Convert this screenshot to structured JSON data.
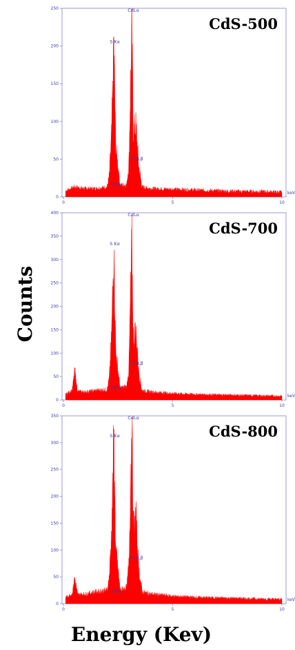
{
  "figure": {
    "ylabel": "Counts",
    "xlabel": "Energy (Kev)"
  },
  "chart_data": [
    {
      "type": "area",
      "title": "CdS-500",
      "x_unit": "keV",
      "xlim": [
        0,
        10
      ],
      "ylim": [
        0,
        250
      ],
      "xticks": [
        "0",
        "5",
        "10"
      ],
      "yticks": [
        "0",
        "50",
        "100",
        "150",
        "200",
        "250"
      ],
      "background_counts": 10,
      "peaks": [
        {
          "label": "S Kα",
          "x": 2.31,
          "y": 200
        },
        {
          "label": "CdLα",
          "x": 3.13,
          "y": 227
        },
        {
          "label": "CdLβ",
          "x": 3.32,
          "y": 93
        },
        {
          "label": "CdLγ",
          "x": 2.35,
          "y": 10
        }
      ],
      "series": [
        {
          "x": [
            0.1,
            0.5,
            1.0,
            1.5,
            2.0,
            2.1,
            2.2,
            2.31,
            2.4,
            2.6,
            2.9,
            3.0,
            3.13,
            3.2,
            3.32,
            3.45,
            3.6,
            4.0,
            5.0,
            6.0,
            7.0,
            8.0,
            9.0,
            10.0
          ],
          "y": [
            8,
            13,
            11,
            11,
            13,
            28,
            80,
            200,
            65,
            15,
            16,
            45,
            227,
            85,
            93,
            40,
            13,
            11,
            10,
            9,
            8,
            7,
            7,
            6
          ]
        }
      ]
    },
    {
      "type": "area",
      "title": "CdS-700",
      "x_unit": "keV",
      "xlim": [
        0,
        10
      ],
      "ylim": [
        0,
        400
      ],
      "xticks": [
        "0",
        "5",
        "10"
      ],
      "yticks": [
        "0",
        "50",
        "100",
        "150",
        "200",
        "250",
        "300",
        "350",
        "400"
      ],
      "background_counts": 15,
      "peaks": [
        {
          "label": "S Kα",
          "x": 2.31,
          "y": 325
        },
        {
          "label": "CdLα",
          "x": 3.13,
          "y": 338
        },
        {
          "label": "CdLβ",
          "x": 3.32,
          "y": 145
        },
        {
          "label": "CdLγ",
          "x": 2.35,
          "y": 15
        },
        {
          "label": "",
          "x": 0.52,
          "y": 60
        }
      ],
      "series": [
        {
          "x": [
            0.1,
            0.4,
            0.52,
            0.65,
            1.0,
            1.5,
            2.0,
            2.1,
            2.2,
            2.31,
            2.4,
            2.6,
            2.9,
            3.0,
            3.13,
            3.2,
            3.32,
            3.45,
            3.6,
            4.0,
            5.0,
            6.0,
            7.0,
            8.0,
            9.0,
            10.0
          ],
          "y": [
            12,
            20,
            60,
            18,
            17,
            20,
            22,
            45,
            130,
            325,
            100,
            25,
            28,
            70,
            338,
            130,
            145,
            60,
            20,
            17,
            14,
            12,
            11,
            10,
            9,
            8
          ]
        }
      ]
    },
    {
      "type": "area",
      "title": "CdS-800",
      "x_unit": "keV",
      "xlim": [
        0,
        10
      ],
      "ylim": [
        0,
        350
      ],
      "xticks": [
        "0",
        "5",
        "10"
      ],
      "yticks": [
        "0",
        "50",
        "100",
        "150",
        "200",
        "250",
        "300",
        "350"
      ],
      "background_counts": 15,
      "peaks": [
        {
          "label": "S Kα",
          "x": 2.31,
          "y": 305
        },
        {
          "label": "CdLα",
          "x": 3.13,
          "y": 342
        },
        {
          "label": "CdLβ",
          "x": 3.32,
          "y": 160
        },
        {
          "label": "CdLγ",
          "x": 2.35,
          "y": 15
        },
        {
          "label": "",
          "x": 0.52,
          "y": 48
        }
      ],
      "series": [
        {
          "x": [
            0.1,
            0.4,
            0.52,
            0.65,
            1.0,
            1.5,
            2.0,
            2.1,
            2.2,
            2.31,
            2.4,
            2.6,
            2.9,
            3.0,
            3.13,
            3.2,
            3.32,
            3.45,
            3.6,
            4.0,
            5.0,
            6.0,
            7.0,
            8.0,
            9.0,
            10.0
          ],
          "y": [
            12,
            18,
            48,
            17,
            18,
            22,
            25,
            50,
            130,
            305,
            100,
            25,
            30,
            75,
            342,
            140,
            160,
            65,
            22,
            18,
            14,
            12,
            11,
            10,
            9,
            8
          ]
        }
      ]
    }
  ],
  "style": {
    "spectrum_color": "#ff0000",
    "frame_color": "#8080c8",
    "label_color": "#3a3aa8"
  }
}
